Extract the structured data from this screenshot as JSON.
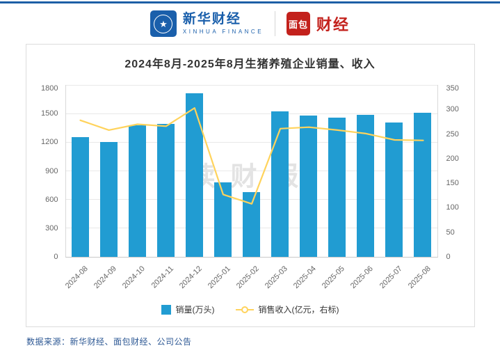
{
  "header": {
    "xinhua": {
      "name": "新华财经",
      "sub": "XINHUA FINANCE",
      "star": "★"
    },
    "mianbao": {
      "icon_text": "面包",
      "name": "财经"
    }
  },
  "chart_data": {
    "type": "bar",
    "title": "2024年8月-2025年8月生猪养殖企业销量、收入",
    "categories": [
      "2024-08",
      "2024-09",
      "2024-10",
      "2024-11",
      "2024-12",
      "2025-01",
      "2025-02",
      "2025-03",
      "2025-04",
      "2025-05",
      "2025-06",
      "2025-07",
      "2025-08"
    ],
    "series": [
      {
        "name": "销量(万头)",
        "type": "bar",
        "axis": "left",
        "values": [
          1250,
          1200,
          1380,
          1390,
          1715,
          780,
          680,
          1525,
          1480,
          1455,
          1490,
          1410,
          1510
        ]
      },
      {
        "name": "销售收入(亿元，右标)",
        "type": "line",
        "axis": "right",
        "values": [
          278,
          258,
          270,
          266,
          303,
          127,
          108,
          261,
          264,
          258,
          251,
          238,
          237
        ]
      }
    ],
    "left_axis": {
      "min": 0,
      "max": 1800,
      "ticks": [
        0,
        300,
        600,
        900,
        1200,
        1500,
        1800
      ]
    },
    "right_axis": {
      "min": 0,
      "max": 350,
      "ticks": [
        0,
        50,
        100,
        150,
        200,
        250,
        300,
        350
      ]
    },
    "colors": {
      "bar": "#219cd2",
      "line": "#ffd35c"
    },
    "legend_position": "bottom",
    "grid": true,
    "watermark": "读财报"
  },
  "footer": {
    "source": "数据来源：新华财经、面包财经、公司公告"
  }
}
